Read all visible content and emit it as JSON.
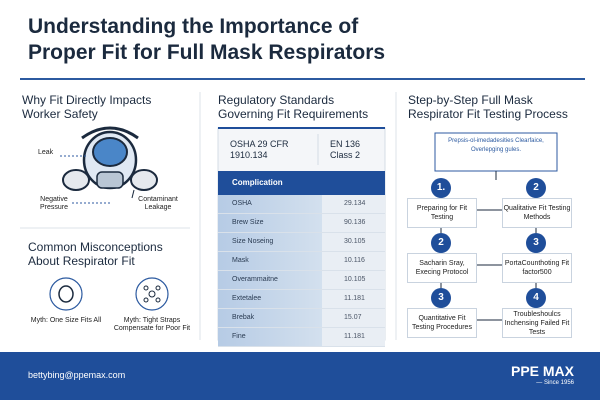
{
  "header": {
    "title": "Understanding the Importance of Proper Fit for Full Mask Respirators"
  },
  "fit_section": {
    "title": "Why Fit Directly Impacts Worker Safety",
    "labels": [
      "Leak",
      "Negative Pressure",
      "Contaminant Leakage"
    ]
  },
  "misconceptions": {
    "title": "Common Misconceptions About Respirator Fit",
    "items": [
      "Myth: One Size Fits All",
      "Myth: Tight Straps Compensate for Poor Fit"
    ]
  },
  "standards": {
    "title": "Regulatory Standards Governing Fit Requirements",
    "columns": [
      "OSHA 29 CFR 1910.134",
      "EN 136 Class 2"
    ],
    "section": "Complication",
    "rows": [
      [
        "OSHA",
        "29.134"
      ],
      [
        "Brew Size",
        "90.136"
      ],
      [
        "Size Noseing",
        "30.105"
      ],
      [
        "Mask",
        "10.116"
      ],
      [
        "Overammaitne",
        "10.105"
      ],
      [
        "Extetalee",
        "11.181"
      ],
      [
        "Brebak",
        "15.07"
      ],
      [
        "Fine",
        "11.181"
      ]
    ]
  },
  "process": {
    "title": "Step-by-Step Full Mask Respirator Fit Testing Process",
    "note": "Prepsis-ol-imedadesities Clearfaice, Overlepging gules.",
    "steps": [
      {
        "number": "1.",
        "label": "Preparing for Fit Testing"
      },
      {
        "number": "2",
        "label": "Qualitative Fit Testing Methods"
      },
      {
        "number": "2",
        "label": "Sacharin Sray, Execing Protocol"
      },
      {
        "number": "3",
        "label": "PortaCounthoting Fit factor500"
      },
      {
        "number": "3",
        "label": "Quantitative Fit Testing Procedures"
      },
      {
        "number": "4",
        "label": "Troubleshoulcs Inchensing Failed Fit Tests"
      }
    ]
  },
  "footer": {
    "email": "bettybing@ppemax.com",
    "brand": "PPE MAX",
    "since": "— Since 1956"
  }
}
